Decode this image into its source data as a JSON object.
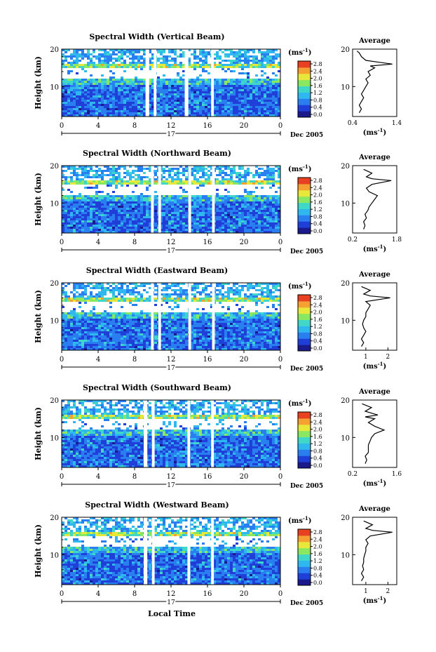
{
  "figure": {
    "x_axis_label": "Local Time",
    "date_label": "Dec 2005",
    "day_label": "17",
    "panels": [
      {
        "title": "Spectral Width (Vertical Beam)",
        "avg_ticks": [
          "0.4",
          "1.4"
        ],
        "avg_xlim": [
          0.4,
          1.4
        ]
      },
      {
        "title": "Spectral Width (Northward Beam)",
        "avg_ticks": [
          "0.2",
          "1.8"
        ],
        "avg_xlim": [
          0.2,
          1.8
        ]
      },
      {
        "title": "Spectral Width (Eastward Beam)",
        "avg_ticks": [
          "1",
          "2"
        ],
        "avg_xlim": [
          0.4,
          2.4
        ]
      },
      {
        "title": "Spectral Width (Southward Beam)",
        "avg_ticks": [
          "0.2",
          "1.6"
        ],
        "avg_xlim": [
          0.2,
          1.6
        ]
      },
      {
        "title": "Spectral Width (Westward Beam)",
        "avg_ticks": [
          "1",
          "2"
        ],
        "avg_xlim": [
          0.4,
          2.4
        ]
      }
    ],
    "colorbar": {
      "unit": "(ms",
      "unit_sup": "-1",
      "unit_close": ")",
      "ticks": [
        "0.0",
        "0.4",
        "0.8",
        "1.2",
        "1.6",
        "2.0",
        "2.4",
        "2.8"
      ],
      "colors": [
        "#1a1a8c",
        "#1f3fd8",
        "#2a7ff0",
        "#2fb7f0",
        "#3fd8c8",
        "#8ae860",
        "#e8e83a",
        "#f5a030",
        "#e84020"
      ]
    },
    "average": {
      "title": "Average",
      "unit": "(ms",
      "unit_sup": "-1",
      "unit_close": ")"
    }
  },
  "chart_data": [
    {
      "type": "heatmap",
      "title": "Spectral Width (Vertical Beam)",
      "xlabel": "",
      "ylabel": "Height (km)",
      "xlim": [
        0,
        24
      ],
      "ylim": [
        2,
        20
      ],
      "xticks": [
        "0",
        "4",
        "8",
        "12",
        "16",
        "20",
        "0"
      ],
      "yticks": [
        "10",
        "20"
      ],
      "colorbar_range": [
        0.0,
        2.8
      ],
      "data_gaps_hours": [
        [
          9.2,
          9.6
        ],
        [
          10.1,
          10.4
        ],
        [
          13.5,
          13.9
        ],
        [
          16.4,
          16.7
        ]
      ]
    },
    {
      "type": "line",
      "title": "Average",
      "xlabel": "(ms-1)",
      "ylabel": "",
      "xlim": [
        0.4,
        1.4
      ],
      "ylim": [
        2,
        20
      ],
      "profile": [
        [
          0.55,
          3
        ],
        [
          0.6,
          4
        ],
        [
          0.55,
          5
        ],
        [
          0.6,
          6
        ],
        [
          0.65,
          7
        ],
        [
          0.6,
          8
        ],
        [
          0.65,
          9
        ],
        [
          0.7,
          10
        ],
        [
          0.75,
          11
        ],
        [
          0.7,
          12
        ],
        [
          0.8,
          13
        ],
        [
          0.75,
          14
        ],
        [
          0.9,
          15
        ],
        [
          0.8,
          15.5
        ],
        [
          1.3,
          16
        ],
        [
          1.0,
          16.5
        ],
        [
          0.7,
          17
        ],
        [
          0.6,
          18
        ],
        [
          0.55,
          19
        ],
        [
          0.5,
          19.5
        ]
      ]
    },
    {
      "type": "heatmap",
      "title": "Spectral Width (Northward Beam)",
      "xlabel": "",
      "ylabel": "Height (km)",
      "xlim": [
        0,
        24
      ],
      "ylim": [
        2,
        20
      ],
      "xticks": [
        "0",
        "4",
        "8",
        "12",
        "16",
        "20",
        "0"
      ],
      "yticks": [
        "10",
        "20"
      ],
      "colorbar_range": [
        0.0,
        2.8
      ],
      "data_gaps_hours": [
        [
          9.8,
          10.1
        ],
        [
          10.6,
          10.9
        ],
        [
          13.9,
          14.2
        ],
        [
          16.5,
          16.8
        ]
      ]
    },
    {
      "type": "line",
      "title": "Average",
      "xlabel": "(ms-1)",
      "ylabel": "",
      "xlim": [
        0.2,
        1.8
      ],
      "ylim": [
        2,
        20
      ],
      "profile": [
        [
          0.6,
          3
        ],
        [
          0.65,
          4
        ],
        [
          0.6,
          5
        ],
        [
          0.7,
          6
        ],
        [
          0.65,
          7
        ],
        [
          0.75,
          8
        ],
        [
          0.8,
          9
        ],
        [
          0.9,
          10
        ],
        [
          1.0,
          11
        ],
        [
          1.1,
          12
        ],
        [
          0.8,
          13
        ],
        [
          0.7,
          14
        ],
        [
          0.9,
          15
        ],
        [
          1.6,
          16
        ],
        [
          0.9,
          16.5
        ],
        [
          0.7,
          17
        ],
        [
          0.9,
          18
        ],
        [
          0.6,
          19
        ]
      ]
    },
    {
      "type": "heatmap",
      "title": "Spectral Width (Eastward Beam)",
      "xlabel": "",
      "ylabel": "Height (km)",
      "xlim": [
        0,
        24
      ],
      "ylim": [
        2,
        20
      ],
      "xticks": [
        "0",
        "4",
        "8",
        "12",
        "16",
        "20",
        "0"
      ],
      "yticks": [
        "10",
        "20"
      ],
      "colorbar_range": [
        0.0,
        2.8
      ],
      "data_gaps_hours": [
        [
          9.8,
          10.1
        ],
        [
          10.6,
          10.9
        ],
        [
          13.9,
          14.2
        ],
        [
          16.5,
          16.8
        ]
      ]
    },
    {
      "type": "line",
      "title": "Average",
      "xlabel": "(ms-1)",
      "ylabel": "",
      "xlim": [
        0.4,
        2.4
      ],
      "ylim": [
        2,
        20
      ],
      "profile": [
        [
          0.8,
          3
        ],
        [
          0.9,
          4
        ],
        [
          0.8,
          5
        ],
        [
          0.9,
          6
        ],
        [
          1.0,
          7
        ],
        [
          0.9,
          8
        ],
        [
          0.85,
          9
        ],
        [
          0.9,
          10
        ],
        [
          1.0,
          11
        ],
        [
          1.0,
          12
        ],
        [
          1.1,
          13
        ],
        [
          1.2,
          14
        ],
        [
          1.0,
          15
        ],
        [
          2.1,
          16
        ],
        [
          1.2,
          16.5
        ],
        [
          0.9,
          17
        ],
        [
          1.2,
          18
        ],
        [
          0.8,
          19
        ]
      ]
    },
    {
      "type": "heatmap",
      "title": "Spectral Width (Southward Beam)",
      "xlabel": "",
      "ylabel": "Height (km)",
      "xlim": [
        0,
        24
      ],
      "ylim": [
        2,
        20
      ],
      "xticks": [
        "0",
        "4",
        "8",
        "12",
        "16",
        "20",
        "0"
      ],
      "yticks": [
        "10",
        "20"
      ],
      "colorbar_range": [
        0.0,
        2.8
      ],
      "data_gaps_hours": [
        [
          9.0,
          9.4
        ],
        [
          9.9,
          10.2
        ],
        [
          13.8,
          14.1
        ],
        [
          16.4,
          16.7
        ]
      ]
    },
    {
      "type": "line",
      "title": "Average",
      "xlabel": "(ms-1)",
      "ylabel": "",
      "xlim": [
        0.2,
        1.6
      ],
      "ylim": [
        2,
        20
      ],
      "profile": [
        [
          0.6,
          3
        ],
        [
          0.65,
          4
        ],
        [
          0.6,
          5
        ],
        [
          0.7,
          6
        ],
        [
          0.7,
          7
        ],
        [
          0.7,
          8
        ],
        [
          0.75,
          9
        ],
        [
          0.8,
          10
        ],
        [
          0.9,
          11
        ],
        [
          1.2,
          12
        ],
        [
          0.9,
          13
        ],
        [
          0.7,
          14
        ],
        [
          0.9,
          15
        ],
        [
          0.6,
          15.5
        ],
        [
          1.0,
          16
        ],
        [
          0.6,
          17
        ],
        [
          0.8,
          18
        ],
        [
          0.5,
          19
        ]
      ]
    },
    {
      "type": "heatmap",
      "title": "Spectral Width (Westward Beam)",
      "xlabel": "Local Time",
      "ylabel": "Height (km)",
      "xlim": [
        0,
        24
      ],
      "ylim": [
        2,
        20
      ],
      "xticks": [
        "0",
        "4",
        "8",
        "12",
        "16",
        "20",
        "0"
      ],
      "yticks": [
        "10",
        "20"
      ],
      "colorbar_range": [
        0.0,
        2.8
      ],
      "data_gaps_hours": [
        [
          9.0,
          9.4
        ],
        [
          9.9,
          10.2
        ],
        [
          13.8,
          14.1
        ],
        [
          16.4,
          16.7
        ]
      ]
    },
    {
      "type": "line",
      "title": "Average",
      "xlabel": "(ms-1)",
      "ylabel": "",
      "xlim": [
        0.4,
        2.4
      ],
      "ylim": [
        2,
        20
      ],
      "profile": [
        [
          0.8,
          3
        ],
        [
          0.9,
          4
        ],
        [
          0.8,
          5
        ],
        [
          0.9,
          6
        ],
        [
          0.85,
          7
        ],
        [
          0.9,
          8
        ],
        [
          0.9,
          9
        ],
        [
          0.95,
          10
        ],
        [
          1.0,
          11
        ],
        [
          1.0,
          12
        ],
        [
          1.1,
          13
        ],
        [
          1.0,
          14
        ],
        [
          1.2,
          15
        ],
        [
          2.2,
          16
        ],
        [
          1.3,
          16.5
        ],
        [
          1.0,
          17
        ],
        [
          1.3,
          18
        ],
        [
          0.9,
          19
        ]
      ]
    }
  ]
}
